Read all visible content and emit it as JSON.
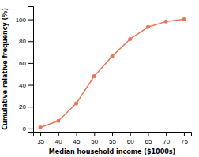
{
  "chart_data": {
    "type": "line",
    "xlabel": "Median household income ($1000s)",
    "ylabel": "Cumulative relative frequency (%)",
    "x": [
      35,
      40,
      45,
      50,
      55,
      60,
      65,
      70,
      75
    ],
    "values": [
      1,
      7,
      23,
      48,
      66,
      82,
      93,
      98,
      100
    ],
    "color": "#E8775A",
    "marker": "circle",
    "xlim": [
      33,
      77
    ],
    "ylim": [
      -3,
      112
    ],
    "xticks": [
      35,
      40,
      45,
      50,
      55,
      60,
      65,
      70,
      75
    ],
    "yticks": [
      0,
      20,
      40,
      60,
      80,
      100
    ],
    "grid": false
  }
}
